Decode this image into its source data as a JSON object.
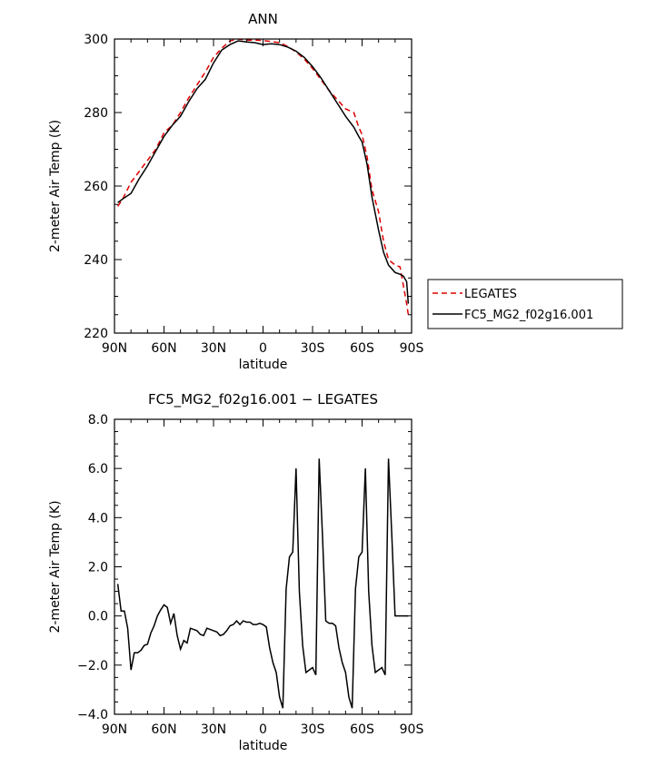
{
  "chart_data": [
    {
      "type": "line",
      "title": "ANN",
      "xlabel": "latitude",
      "ylabel": "2-meter Air Temp (K)",
      "xlim": [
        90,
        -90
      ],
      "ylim": [
        220,
        300
      ],
      "xtick_values": [
        90,
        60,
        30,
        0,
        -30,
        -60,
        -90
      ],
      "xtick_labels": [
        "90N",
        "60N",
        "30N",
        "0",
        "30S",
        "60S",
        "90S"
      ],
      "ytick_values": [
        220,
        240,
        260,
        280,
        300
      ],
      "ytick_labels": [
        "220",
        "240",
        "260",
        "280",
        "300"
      ],
      "legend": {
        "placement": "right"
      },
      "series": [
        {
          "name": "LEGATES",
          "color": "#e00000",
          "dash": "dashed",
          "x": [
            88,
            85,
            80,
            75,
            70,
            65,
            60,
            55,
            50,
            45,
            40,
            35,
            30,
            25,
            20,
            15,
            10,
            5,
            0,
            -5,
            -10,
            -15,
            -20,
            -25,
            -30,
            -35,
            -40,
            -45,
            -50,
            -55,
            -58,
            -60,
            -63,
            -66,
            -70,
            -73,
            -76,
            -80,
            -83,
            -85,
            -87,
            -88
          ],
          "y": [
            254.5,
            256.5,
            261,
            264,
            267,
            270,
            274.5,
            276.5,
            280,
            284,
            287.5,
            291,
            295,
            297.5,
            299.5,
            300,
            299.7,
            299.7,
            299.6,
            299.3,
            299,
            298,
            296.5,
            294.5,
            292,
            289,
            286,
            283.5,
            281,
            280,
            276,
            274,
            268,
            259,
            253,
            245,
            240,
            238.5,
            238,
            233,
            228,
            225
          ]
        },
        {
          "name": "FC5_MG2_f02g16.001",
          "color": "#000000",
          "dash": "solid",
          "x": [
            88,
            85,
            80,
            75,
            70,
            65,
            60,
            55,
            50,
            45,
            40,
            35,
            30,
            25,
            20,
            15,
            10,
            5,
            0,
            -5,
            -10,
            -15,
            -20,
            -25,
            -30,
            -35,
            -40,
            -45,
            -50,
            -55,
            -58,
            -60,
            -63,
            -66,
            -70,
            -73,
            -76,
            -80,
            -83,
            -85,
            -87,
            -88
          ],
          "y": [
            255.5,
            256.5,
            258,
            262,
            265.5,
            269.5,
            273.5,
            276.5,
            279,
            283,
            286.5,
            289,
            293.5,
            297,
            298.5,
            299.5,
            299.2,
            299,
            298.5,
            298.7,
            298.5,
            297.8,
            296.7,
            295,
            292.5,
            289.5,
            286,
            282.5,
            279,
            276,
            273.5,
            272,
            266,
            257,
            248,
            242,
            238.5,
            236.5,
            236,
            235.5,
            234,
            228
          ]
        }
      ]
    },
    {
      "type": "line",
      "title": "FC5_MG2_f02g16.001 − LEGATES",
      "xlabel": "latitude",
      "ylabel": "2-meter Air Temp (K)",
      "xlim": [
        90,
        -90
      ],
      "ylim": [
        -4.0,
        8.0
      ],
      "xtick_values": [
        90,
        60,
        30,
        0,
        -30,
        -60,
        -90
      ],
      "xtick_labels": [
        "90N",
        "60N",
        "30N",
        "0",
        "30S",
        "60S",
        "90S"
      ],
      "ytick_values": [
        -4,
        -2,
        0,
        2,
        4,
        6,
        8
      ],
      "ytick_labels": [
        "−4.0",
        "−2.0",
        "0.0",
        "2.0",
        "4.0",
        "6.0",
        "8.0"
      ],
      "series": [
        {
          "color": "#000000",
          "dash": "solid",
          "x": [
            88,
            86,
            84,
            82,
            80,
            78,
            76,
            74,
            72,
            70,
            68,
            66,
            64,
            62,
            60,
            58,
            56,
            54,
            52,
            50,
            48,
            46,
            44,
            42,
            40,
            38,
            36,
            34,
            32,
            30,
            28,
            26,
            24,
            22,
            20,
            18,
            16,
            14,
            12,
            10,
            8,
            6,
            4,
            2,
            0,
            -2,
            -4,
            -6,
            -8,
            -10,
            -12,
            -14,
            -16,
            -18,
            -20,
            -22,
            -24,
            -26,
            -28,
            -30,
            -32,
            -34,
            -36,
            -38,
            -40,
            -42,
            -44,
            -46,
            -48,
            -50,
            -52,
            -54,
            -56,
            -58,
            -60,
            -62,
            -64,
            -66,
            -68,
            -70,
            -72,
            -74,
            -76,
            -78,
            -80,
            -82,
            -84,
            -86,
            -88
          ],
          "y": [
            1.3,
            0.2,
            0.2,
            -0.5,
            -2.2,
            -1.5,
            -1.5,
            -1.4,
            -1.2,
            -1.15,
            -0.7,
            -0.4,
            0.0,
            0.25,
            0.45,
            0.35,
            -0.3,
            0.1,
            -0.8,
            -1.35,
            -1.0,
            -1.1,
            -0.5,
            -0.55,
            -0.6,
            -0.75,
            -0.8,
            -0.5,
            -0.55,
            -0.6,
            -0.65,
            -0.8,
            -0.75,
            -0.6,
            -0.4,
            -0.35,
            -0.2,
            -0.35,
            -0.2,
            -0.25,
            -0.25,
            -0.35,
            -0.35,
            -0.3,
            -0.35,
            -0.45,
            -1.3,
            -1.9,
            -2.3,
            -3.3,
            -3.75,
            1.1,
            2.4,
            2.6,
            6.0,
            1.0,
            -1.2,
            -2.3,
            -2.2,
            -2.1,
            -2.4,
            6.4,
            3.3,
            -0.2,
            -0.3,
            -0.3,
            -0.4,
            -1.3,
            -1.9,
            -2.3,
            -3.3,
            -3.75,
            1.1,
            2.4,
            2.6,
            6.0,
            1.0,
            -1.2,
            -2.3,
            -2.2,
            -2.1,
            -2.4,
            6.4,
            3.3,
            0.0,
            0.0,
            0.0,
            0.0,
            0.0
          ]
        }
      ]
    }
  ]
}
